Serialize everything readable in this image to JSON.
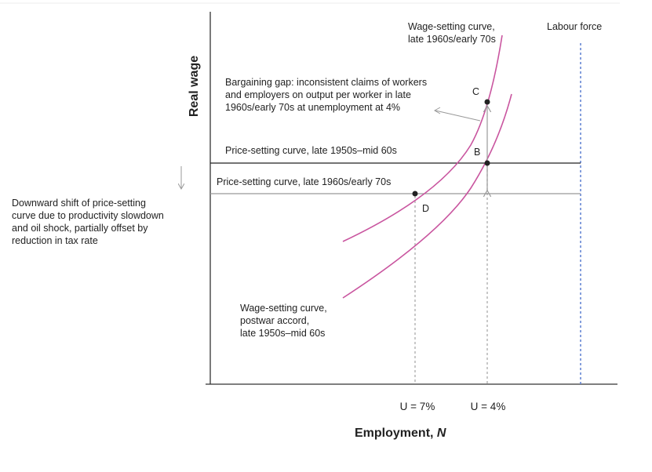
{
  "axes": {
    "y_label": "Real wage",
    "x_label": "Employment,",
    "x_variable": "N",
    "x_ticks": [
      "U = 7%",
      "U = 4%"
    ]
  },
  "labels": {
    "labour_force": "Labour force",
    "wage_setting_late": [
      "Wage-setting curve,",
      "late 1960s/early 70s"
    ],
    "bargaining_gap": [
      "Bargaining gap: inconsistent claims of workers",
      "and employers on output per worker in late",
      "1960s/early 70s at unemployment at 4%"
    ],
    "price_setting_early": "Price-setting curve, late 1950s–mid 60s",
    "price_setting_late": "Price-setting curve, late 1960s/early 70s",
    "downward_shift": [
      "Downward shift of price-setting",
      "curve due to productivity slowdown",
      "and oil shock, partially offset by",
      "reduction in tax rate"
    ],
    "wage_setting_postwar": [
      "Wage-setting curve,",
      "postwar accord,",
      "late 1950s–mid 60s"
    ]
  },
  "points": {
    "C": "C",
    "B": "B",
    "D": "D"
  }
}
